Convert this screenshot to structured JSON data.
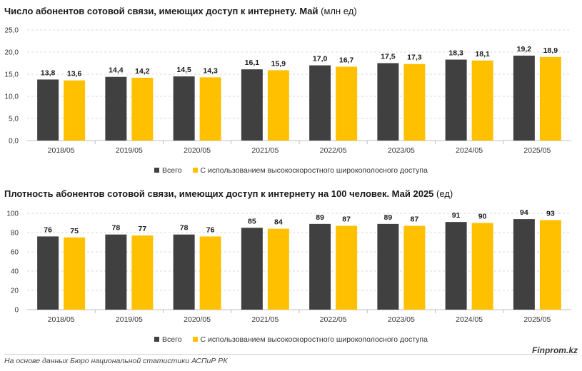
{
  "colors": {
    "series1": "#404040",
    "series2": "#FFC000",
    "grid": "#d9d9d9",
    "axis": "#bfbfbf"
  },
  "footer": {
    "source": "На основе данных Бюро национальной статистики АСПиР РК",
    "brand": "Finprom.kz"
  },
  "chart_data": [
    {
      "type": "bar",
      "title": "Число абонентов сотовой связи, имеющих доступ к интернету. Май",
      "subtitle": "(млн ед)",
      "categories": [
        "2018/05",
        "2019/05",
        "2020/05",
        "2021/05",
        "2022/05",
        "2023/05",
        "2024/05",
        "2025/05"
      ],
      "series": [
        {
          "name": "Всего",
          "values": [
            13.8,
            14.4,
            14.5,
            16.1,
            17.0,
            17.5,
            18.3,
            19.2
          ]
        },
        {
          "name": "С использованием высокоскоростного широкополосного доступа",
          "values": [
            13.6,
            14.2,
            14.3,
            15.9,
            16.7,
            17.3,
            18.1,
            18.9
          ]
        }
      ],
      "data_labels": [
        [
          "13,8",
          "14,4",
          "14,5",
          "16,1",
          "17,0",
          "17,5",
          "18,3",
          "19,2"
        ],
        [
          "13,6",
          "14,2",
          "14,3",
          "15,9",
          "16,7",
          "17,3",
          "18,1",
          "18,9"
        ]
      ],
      "ylim": [
        0,
        25
      ],
      "yticks": [
        "0,0",
        "5,0",
        "10,0",
        "15,0",
        "20,0",
        "25,0"
      ],
      "xlabel": "",
      "ylabel": "",
      "grid": true,
      "legend": "bottom"
    },
    {
      "type": "bar",
      "title": "Плотность абонентов сотовой связи, имеющих доступ к интернету на 100 человек. Май 2025",
      "subtitle": "(ед)",
      "categories": [
        "2018/05",
        "2019/05",
        "2020/05",
        "2021/05",
        "2022/05",
        "2023/05",
        "2024/05",
        "2025/05"
      ],
      "series": [
        {
          "name": "Всего",
          "values": [
            76,
            78,
            78,
            85,
            89,
            89,
            91,
            94
          ]
        },
        {
          "name": "С использованием высокоскоростного широкополосного доступа",
          "values": [
            75,
            77,
            76,
            84,
            87,
            87,
            90,
            93
          ]
        }
      ],
      "data_labels": [
        [
          "76",
          "78",
          "78",
          "85",
          "89",
          "89",
          "91",
          "94"
        ],
        [
          "75",
          "77",
          "76",
          "84",
          "87",
          "87",
          "90",
          "93"
        ]
      ],
      "ylim": [
        0,
        100
      ],
      "yticks": [
        "0",
        "20",
        "40",
        "60",
        "80",
        "100"
      ],
      "xlabel": "",
      "ylabel": "",
      "grid": true,
      "legend": "bottom"
    }
  ]
}
